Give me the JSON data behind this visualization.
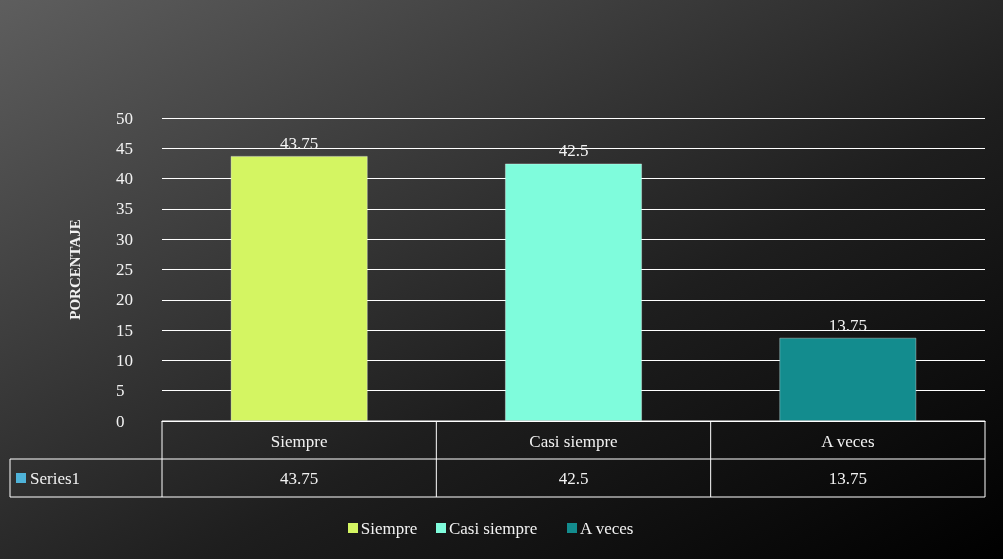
{
  "chart_data": {
    "type": "bar",
    "ylabel": "PORCENTAJE",
    "categories": [
      "Siempre",
      "Casi siempre",
      "A veces"
    ],
    "series": [
      {
        "name": "Series1",
        "color": "#4fb3d9",
        "colors": [
          "#d4f562",
          "#7ffcdc",
          "#138c8e"
        ],
        "values": [
          43.75,
          42.5,
          13.75
        ]
      }
    ],
    "annotations": [
      "43.75",
      "42.5",
      "13.75"
    ],
    "ylim": [
      0,
      50
    ],
    "yticks": [
      0,
      5,
      10,
      15,
      20,
      25,
      30,
      35,
      40,
      45,
      50
    ],
    "grid": true,
    "data_labels": true,
    "legend": "bottom"
  }
}
